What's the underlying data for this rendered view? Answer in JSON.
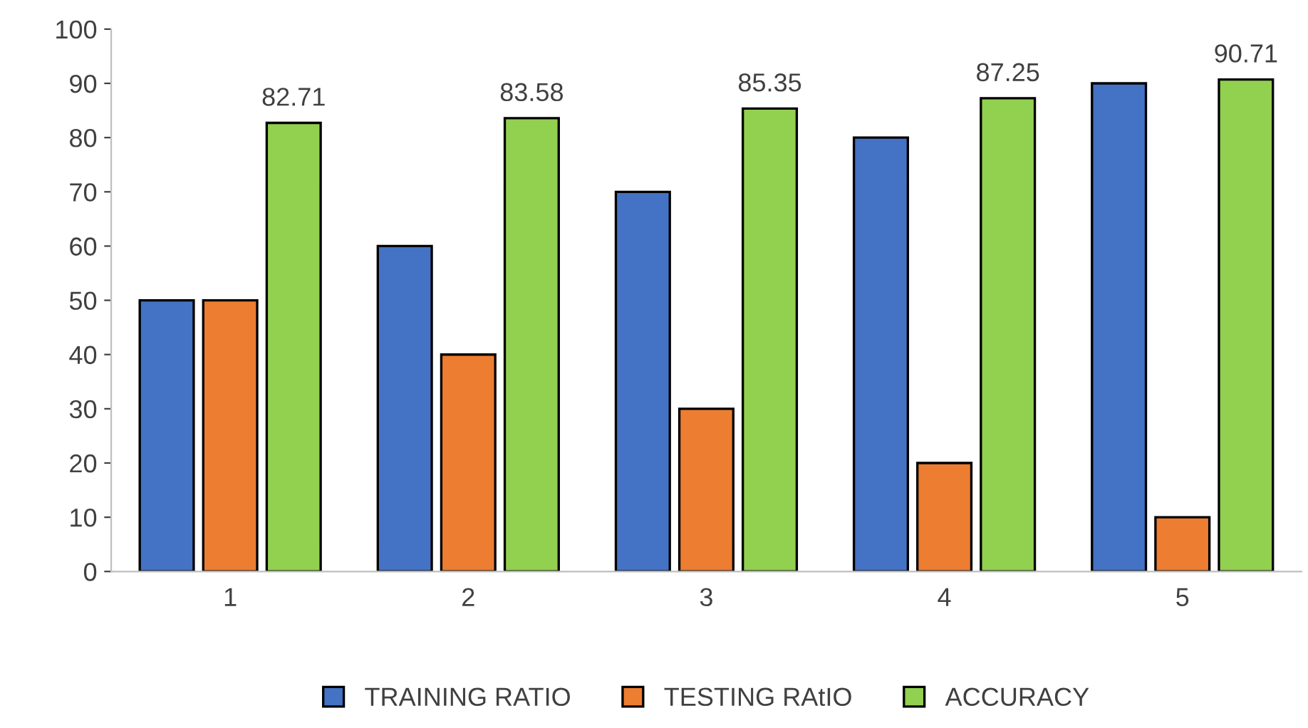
{
  "chart_data": {
    "type": "bar",
    "categories": [
      "1",
      "2",
      "3",
      "4",
      "5"
    ],
    "series": [
      {
        "name": "TRAINING RATIO",
        "color": "#4472c4",
        "values": [
          50,
          60,
          70,
          80,
          90
        ]
      },
      {
        "name": "TESTING RAtIO",
        "color": "#ed7d31",
        "values": [
          50,
          40,
          30,
          20,
          10
        ]
      },
      {
        "name": "ACCURACY",
        "color": "#92d050",
        "values": [
          82.71,
          83.58,
          85.35,
          87.25,
          90.71
        ],
        "value_labels": [
          "82.71",
          "83.58",
          "85.35",
          "87.25",
          "90.71"
        ]
      }
    ],
    "ylim": [
      0,
      100
    ],
    "yticks": [
      0,
      10,
      20,
      30,
      40,
      50,
      60,
      70,
      80,
      90,
      100
    ],
    "grid": false,
    "legend": "bottom"
  }
}
